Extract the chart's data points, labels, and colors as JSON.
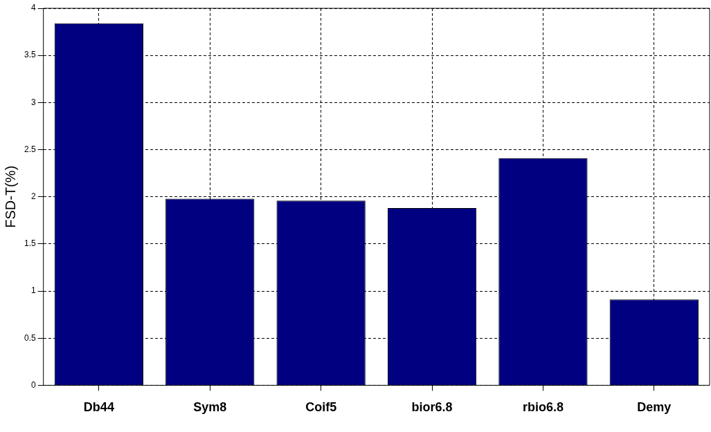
{
  "chart_data": {
    "type": "bar",
    "ylabel": "FSD-T(%)",
    "categories": [
      "Db44",
      "Sym8",
      "Coif5",
      "bior6.8",
      "rbio6.8",
      "Demy"
    ],
    "values": [
      3.84,
      1.98,
      1.96,
      1.88,
      2.41,
      0.91
    ],
    "color": "#000080",
    "ylim": [
      0,
      4
    ],
    "yticks": [
      0,
      0.5,
      1,
      1.5,
      2,
      2.5,
      3,
      3.5,
      4
    ],
    "grid": true,
    "legend": false
  }
}
